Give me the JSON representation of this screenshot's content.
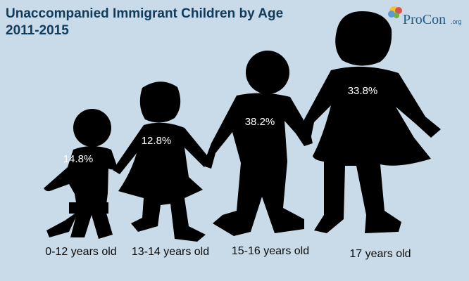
{
  "chart_data": {
    "type": "pictograph",
    "title": "Unaccompanied Immigrant Children by Age",
    "subtitle": "2011-2015",
    "categories": [
      "0-12 years old",
      "13-14 years old",
      "15-16 years old",
      "17 years old"
    ],
    "values": [
      14.8,
      12.8,
      38.2,
      33.8
    ],
    "value_labels": [
      "14.8%",
      "12.8%",
      "38.2%",
      "33.8%"
    ]
  },
  "logo": {
    "text": "ProCon",
    "suffix": ".org"
  },
  "colors": {
    "background": "#c9dbe8",
    "title": "#0f3b5c",
    "silhouette": "#000000",
    "value_text": "#ffffff",
    "logo_text": "#1b5e8a"
  }
}
